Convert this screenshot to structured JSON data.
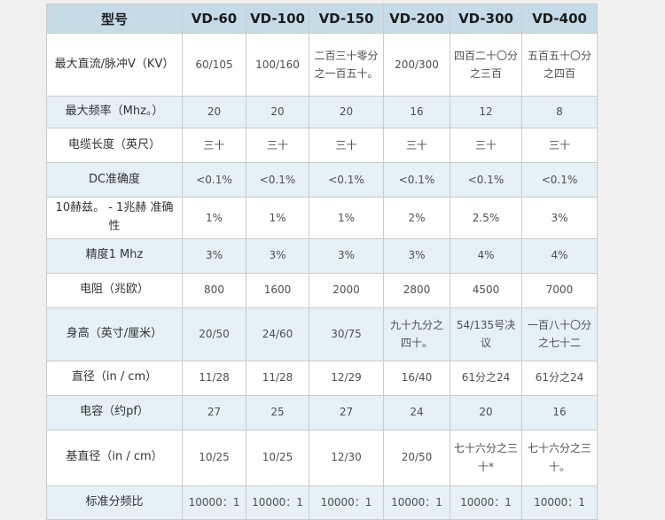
{
  "colors": {
    "page_background": "#f0f0f0",
    "header_background": "#c6dbe8",
    "stripe_background": "#e6f0f7",
    "border": "#cbcbcb",
    "header_text": "#1c1c1c",
    "label_text": "#333333",
    "value_text": "#4f4f4f"
  },
  "table": {
    "header": {
      "model_label": "型号",
      "columns": [
        "VD-60",
        "VD-100",
        "VD-150",
        "VD-200",
        "VD-300",
        "VD-400"
      ]
    },
    "rows": [
      {
        "label": "最大直流/脉冲V（KV）",
        "values": [
          "60/105",
          "100/160",
          "二百三十零分之一百五十。",
          "200/300",
          "四百二十〇分之三百",
          "五百五十〇分之四百"
        ]
      },
      {
        "label": "最大频率（Mhz。）",
        "values": [
          "20",
          "20",
          "20",
          "16",
          "12",
          "8"
        ]
      },
      {
        "label": "电缆长度（英尺）",
        "values": [
          "三十",
          "三十",
          "三十",
          "三十",
          "三十",
          "三十"
        ]
      },
      {
        "label": "DC准确度",
        "values": [
          "<0.1%",
          "<0.1%",
          "<0.1%",
          "<0.1%",
          "<0.1%",
          "<0.1%"
        ]
      },
      {
        "label": "10赫兹。 - 1兆赫 准确性",
        "values": [
          "1%",
          "1%",
          "1%",
          "2%",
          "2.5%",
          "3%"
        ]
      },
      {
        "label": "精度1 Mhz",
        "values": [
          "3%",
          "3%",
          "3%",
          "3%",
          "4%",
          "4%"
        ]
      },
      {
        "label": "电阻（兆欧）",
        "values": [
          "800",
          "1600",
          "2000",
          "2800",
          "4500",
          "7000"
        ]
      },
      {
        "label": "身高（英寸/厘米）",
        "values": [
          "20/50",
          "24/60",
          "30/75",
          "九十九分之四十。",
          "54/135号决议",
          "一百八十〇分之七十二"
        ]
      },
      {
        "label": "直径（in / cm）",
        "values": [
          "11/28",
          "11/28",
          "12/29",
          "16/40",
          "61分之24",
          "61分之24"
        ]
      },
      {
        "label": "电容（约pf）",
        "values": [
          "27",
          "25",
          "27",
          "24",
          "20",
          "16"
        ]
      },
      {
        "label": "基直径（in / cm）",
        "values": [
          "10/25",
          "10/25",
          "12/30",
          "20/50",
          "七十六分之三十*",
          "七十六分之三十。"
        ]
      },
      {
        "label": "标准分频比",
        "values": [
          "10000：1",
          "10000：1",
          "10000：1",
          "10000：1",
          "10000：1",
          "10000：1"
        ]
      }
    ]
  }
}
